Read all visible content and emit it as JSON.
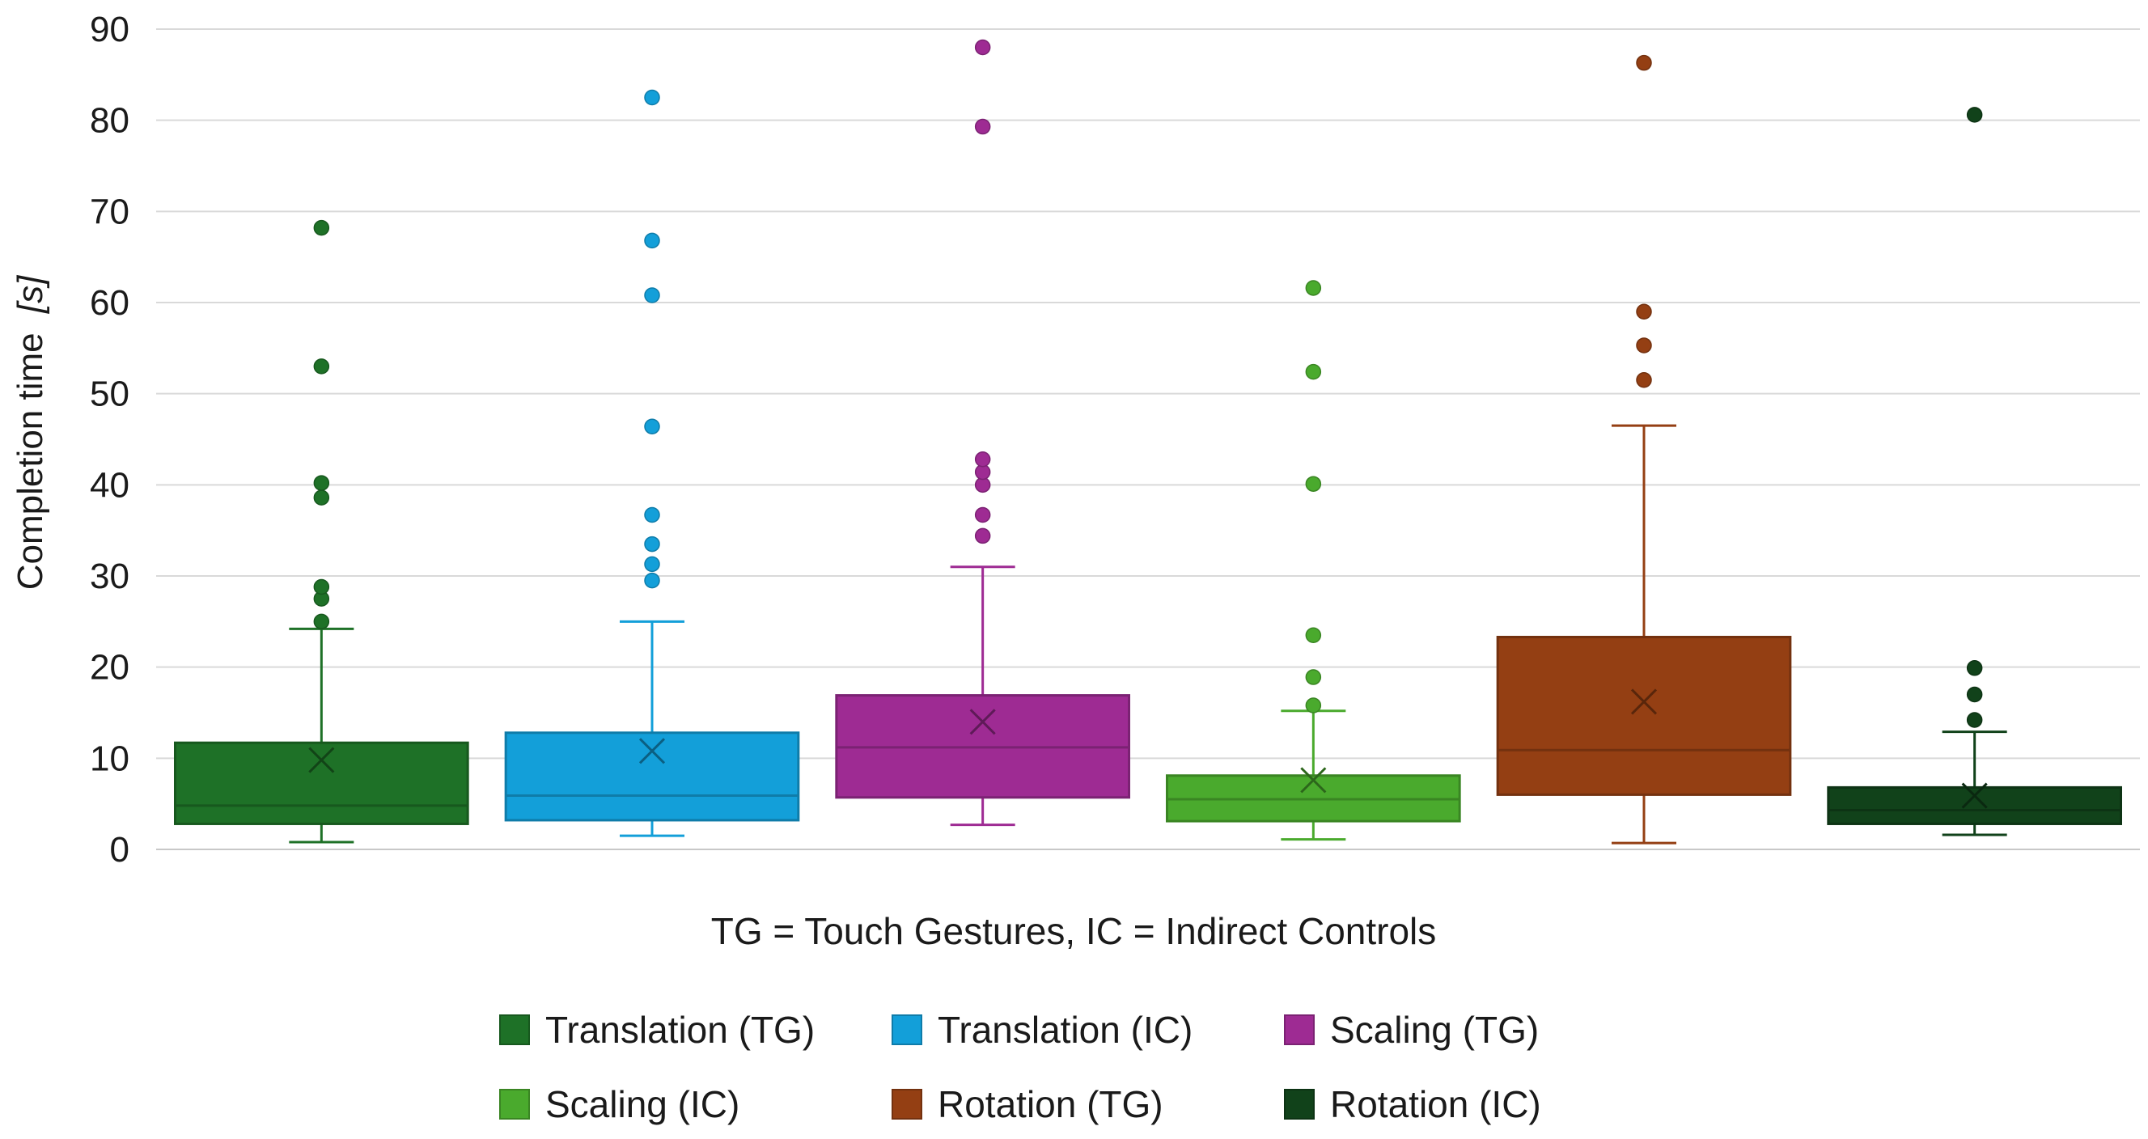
{
  "chart_data": {
    "type": "box",
    "title": "",
    "xlabel": "TG = Touch  Gestures, IC = Indirect Controls",
    "ylabel": "Completion time",
    "ylabel_unit": "[s]",
    "ylim": [
      0,
      90
    ],
    "yticks": [
      0,
      10,
      20,
      30,
      40,
      50,
      60,
      70,
      80,
      90
    ],
    "grid": true,
    "legend_position": "bottom",
    "series": [
      {
        "name": "Translation (TG)",
        "color": "#1e7127",
        "whisker_low": 0.8,
        "q1": 2.8,
        "median": 4.8,
        "q3": 11.7,
        "whisker_high": 24.2,
        "mean": 9.8,
        "outliers": [
          25,
          27.5,
          28.8,
          38.6,
          40.2,
          53,
          68.2
        ]
      },
      {
        "name": "Translation (IC)",
        "color": "#139fd9",
        "whisker_low": 1.5,
        "q1": 3.2,
        "median": 5.9,
        "q3": 12.8,
        "whisker_high": 25,
        "mean": 10.8,
        "outliers": [
          29.5,
          31.3,
          33.5,
          36.7,
          46.4,
          60.8,
          66.8,
          82.5
        ]
      },
      {
        "name": "Scaling (TG)",
        "color": "#9e2b93",
        "whisker_low": 2.7,
        "q1": 5.7,
        "median": 11.2,
        "q3": 16.9,
        "whisker_high": 31,
        "mean": 14,
        "outliers": [
          34.4,
          36.7,
          40,
          41.4,
          42.8,
          79.3,
          88
        ]
      },
      {
        "name": "Scaling (IC)",
        "color": "#4aaa2d",
        "whisker_low": 1.1,
        "q1": 3.1,
        "median": 5.5,
        "q3": 8.1,
        "whisker_high": 15.2,
        "mean": 7.6,
        "outliers": [
          15.8,
          18.9,
          23.5,
          40.1,
          52.4,
          61.6
        ]
      },
      {
        "name": "Rotation (TG)",
        "color": "#943f13",
        "whisker_low": 0.7,
        "q1": 6,
        "median": 10.9,
        "q3": 23.3,
        "whisker_high": 46.5,
        "mean": 16.2,
        "outliers": [
          51.5,
          55.3,
          59,
          86.3
        ]
      },
      {
        "name": "Rotation (IC)",
        "color": "#11421a",
        "whisker_low": 1.6,
        "q1": 2.8,
        "median": 4.3,
        "q3": 6.8,
        "whisker_high": 12.9,
        "mean": 5.9,
        "outliers": [
          14.2,
          17,
          19.9,
          80.6
        ]
      }
    ]
  }
}
